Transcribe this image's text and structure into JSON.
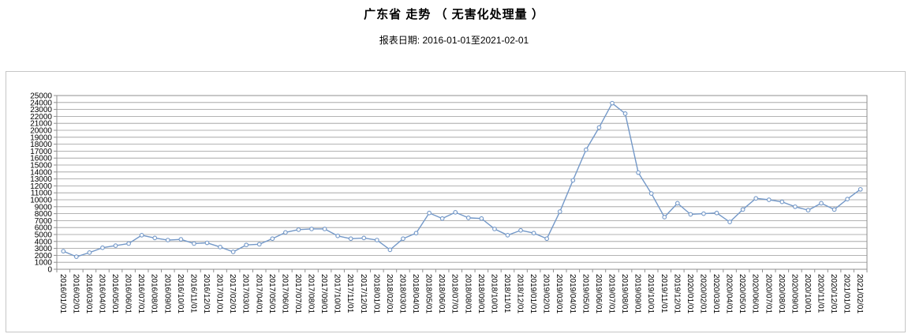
{
  "header": {
    "title": "广东省 走势 （ 无害化处理量 ）",
    "report_date": "报表日期: 2016-01-01至2021-02-01"
  },
  "chart_data": {
    "type": "line",
    "title": "广东省 走势 （ 无害化处理量 ）",
    "xlabel": "",
    "ylabel": "",
    "ylim": [
      0,
      25000
    ],
    "ytick_step": 1000,
    "grid": true,
    "legend": "none",
    "line_color": "#7398c8",
    "marker": "open-circle",
    "x": [
      "2016/01/01",
      "2016/02/01",
      "2016/03/01",
      "2016/04/01",
      "2016/05/01",
      "2016/06/01",
      "2016/07/01",
      "2016/08/01",
      "2016/09/01",
      "2016/10/01",
      "2016/11/01",
      "2016/12/01",
      "2017/01/01",
      "2017/02/01",
      "2017/03/01",
      "2017/04/01",
      "2017/05/01",
      "2017/06/01",
      "2017/07/01",
      "2017/08/01",
      "2017/09/01",
      "2017/10/01",
      "2017/11/01",
      "2017/12/01",
      "2018/01/01",
      "2018/02/01",
      "2018/03/01",
      "2018/04/01",
      "2018/05/01",
      "2018/06/01",
      "2018/07/01",
      "2018/08/01",
      "2018/09/01",
      "2018/10/01",
      "2018/11/01",
      "2018/12/01",
      "2019/01/01",
      "2019/02/01",
      "2019/03/01",
      "2019/04/01",
      "2019/05/01",
      "2019/06/01",
      "2019/07/01",
      "2019/08/01",
      "2019/09/01",
      "2019/10/01",
      "2019/11/01",
      "2019/12/01",
      "2020/01/01",
      "2020/02/01",
      "2020/03/01",
      "2020/04/01",
      "2020/05/01",
      "2020/06/01",
      "2020/07/01",
      "2020/08/01",
      "2020/09/01",
      "2020/10/01",
      "2020/11/01",
      "2020/12/01",
      "2021/01/01",
      "2021/02/01"
    ],
    "values": [
      2600,
      1800,
      2400,
      3100,
      3400,
      3700,
      4900,
      4500,
      4200,
      4300,
      3700,
      3800,
      3200,
      2500,
      3500,
      3600,
      4400,
      5300,
      5700,
      5800,
      5800,
      4800,
      4400,
      4500,
      4200,
      2800,
      4400,
      5200,
      8100,
      7300,
      8200,
      7400,
      7300,
      5800,
      4900,
      5600,
      5200,
      4400,
      8300,
      12800,
      17200,
      20400,
      23900,
      22400,
      13900,
      10900,
      7500,
      9500,
      7900,
      8000,
      8100,
      6800,
      8600,
      10200,
      10000,
      9700,
      9000,
      8500,
      9500,
      8600,
      10100,
      11500
    ]
  }
}
